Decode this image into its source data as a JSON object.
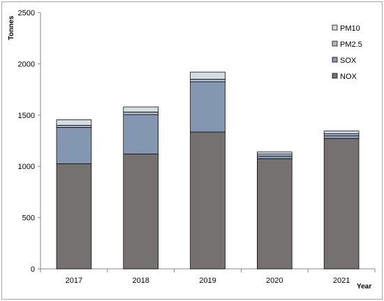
{
  "chart_data": {
    "type": "bar",
    "stacked": true,
    "categories": [
      "2017",
      "2018",
      "2019",
      "2020",
      "2021"
    ],
    "series": [
      {
        "name": "NOX",
        "color": "#767171",
        "values": [
          1025,
          1120,
          1335,
          1075,
          1270
        ]
      },
      {
        "name": "SOX",
        "color": "#8497b0",
        "values": [
          355,
          385,
          490,
          25,
          30
        ]
      },
      {
        "name": "PM2.5",
        "color": "#adb9ca",
        "values": [
          20,
          25,
          25,
          20,
          20
        ]
      },
      {
        "name": "PM10",
        "color": "#d6dce4",
        "values": [
          55,
          50,
          70,
          20,
          25
        ]
      }
    ],
    "xlabel": "Year",
    "ylabel": "Tonnes",
    "ylim": [
      0,
      2500
    ],
    "yticks": [
      "0",
      "500",
      "1000",
      "1500",
      "2000",
      "2500"
    ],
    "legend": [
      "PM10",
      "PM2.5",
      "SOX",
      "NOX"
    ],
    "legend_position": "top-right",
    "grid": false
  }
}
